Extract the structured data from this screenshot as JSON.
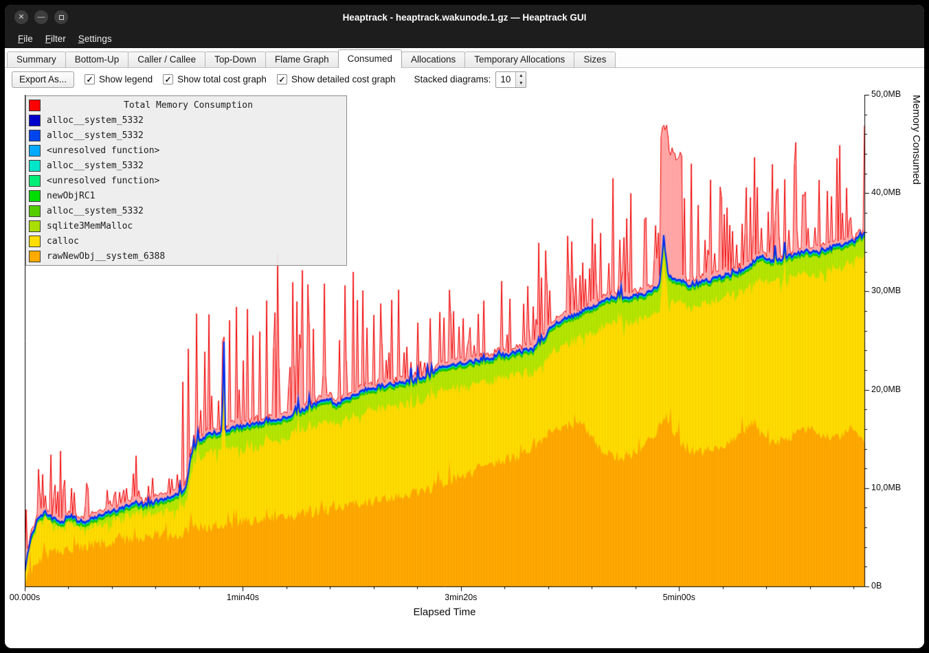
{
  "window": {
    "title": "Heaptrack - heaptrack.wakunode.1.gz — Heaptrack GUI"
  },
  "menubar": {
    "items": [
      "File",
      "Filter",
      "Settings"
    ]
  },
  "tabs": {
    "items": [
      "Summary",
      "Bottom-Up",
      "Caller / Callee",
      "Top-Down",
      "Flame Graph",
      "Consumed",
      "Allocations",
      "Temporary Allocations",
      "Sizes"
    ],
    "active": "Consumed"
  },
  "toolbar": {
    "export_label": "Export As...",
    "checkboxes": [
      {
        "label": "Show legend",
        "checked": true
      },
      {
        "label": "Show total cost graph",
        "checked": true
      },
      {
        "label": "Show detailed cost graph",
        "checked": true
      }
    ],
    "stacked_label": "Stacked diagrams:",
    "stacked_value": "10"
  },
  "legend": {
    "title": "Total Memory Consumption",
    "title_color": "#ff0000",
    "items": [
      {
        "label": "alloc__system_5332",
        "color": "#0000cc"
      },
      {
        "label": "alloc__system_5332",
        "color": "#0044ee"
      },
      {
        "label": "<unresolved function>",
        "color": "#00aaff"
      },
      {
        "label": "alloc__system_5332",
        "color": "#00e6c8"
      },
      {
        "label": "<unresolved function>",
        "color": "#00ee77"
      },
      {
        "label": "newObjRC1",
        "color": "#00dd00"
      },
      {
        "label": "alloc__system_5332",
        "color": "#55cc00"
      },
      {
        "label": "sqlite3MemMalloc",
        "color": "#aadd00"
      },
      {
        "label": "calloc",
        "color": "#ffdd00"
      },
      {
        "label": "rawNewObj__system_6388",
        "color": "#ffaa00"
      }
    ]
  },
  "chart_data": {
    "type": "area",
    "title": "Total Memory Consumption",
    "xlabel": "Elapsed Time",
    "ylabel": "Memory Consumed",
    "x_axis": {
      "max_s": 385,
      "minor_step_s": 20,
      "ticks": [
        {
          "s": 0,
          "label": "00.000s"
        },
        {
          "s": 100,
          "label": "1min40s"
        },
        {
          "s": 200,
          "label": "3min20s"
        },
        {
          "s": 300,
          "label": "5min00s"
        }
      ]
    },
    "y_axis": {
      "max_mb": 50,
      "minor_step_mb": 2,
      "ticks": [
        {
          "v": 0,
          "label": "0B"
        },
        {
          "v": 10,
          "label": "10,0MB"
        },
        {
          "v": 20,
          "label": "20,0MB"
        },
        {
          "v": 30,
          "label": "30,0MB"
        },
        {
          "v": 40,
          "label": "40,0MB"
        },
        {
          "v": 50,
          "label": "50,0MB"
        }
      ]
    },
    "colors": {
      "total_fill": "#ff3030",
      "total_line": "#ee0000",
      "stack_top_line": "#0030f0",
      "blue_fill": "#0038ff",
      "cyan_band": "#00dcc8",
      "green_band": "#16c800",
      "light_green": "#b4e600",
      "yellow": "#ffdc00",
      "orange": "#ffa800"
    },
    "series": {
      "note": "keypoints are [elapsed_seconds, megabytes] read off the plot; detailed spikes are reconstructed around these trends",
      "stack_top_mb": [
        [
          0,
          1.6
        ],
        [
          3,
          5.2
        ],
        [
          6,
          6.8
        ],
        [
          9,
          7.6
        ],
        [
          13,
          6.9
        ],
        [
          17,
          6.5
        ],
        [
          20,
          7.3
        ],
        [
          24,
          6.8
        ],
        [
          28,
          6.6
        ],
        [
          32,
          7.0
        ],
        [
          36,
          7.3
        ],
        [
          40,
          7.6
        ],
        [
          45,
          8.0
        ],
        [
          50,
          8.6
        ],
        [
          55,
          8.3
        ],
        [
          60,
          8.7
        ],
        [
          65,
          8.9
        ],
        [
          70,
          9.3
        ],
        [
          74,
          9.9
        ],
        [
          76,
          13.2
        ],
        [
          80,
          14.8
        ],
        [
          84,
          15.4
        ],
        [
          88,
          15.7
        ],
        [
          90.6,
          15.8
        ],
        [
          91.2,
          28.4
        ],
        [
          91.8,
          15.9
        ],
        [
          95,
          16.1
        ],
        [
          100,
          16.3
        ],
        [
          106,
          16.6
        ],
        [
          112,
          16.9
        ],
        [
          118,
          17.1
        ],
        [
          124,
          17.6
        ],
        [
          130,
          18.2
        ],
        [
          135,
          18.8
        ],
        [
          139,
          19.1
        ],
        [
          143,
          18.6
        ],
        [
          148,
          19.2
        ],
        [
          153,
          19.7
        ],
        [
          158,
          20.1
        ],
        [
          163,
          20.4
        ],
        [
          169,
          20.6
        ],
        [
          175,
          20.8
        ],
        [
          181,
          21.0
        ],
        [
          187,
          21.5
        ],
        [
          191,
          22.3
        ],
        [
          196,
          22.5
        ],
        [
          202,
          22.7
        ],
        [
          208,
          23.0
        ],
        [
          214,
          23.3
        ],
        [
          221,
          23.6
        ],
        [
          227,
          23.9
        ],
        [
          233,
          24.1
        ],
        [
          238,
          25.2
        ],
        [
          241,
          26.5
        ],
        [
          246,
          27.1
        ],
        [
          251,
          27.5
        ],
        [
          257,
          28.1
        ],
        [
          263,
          28.8
        ],
        [
          268,
          29.3
        ],
        [
          274,
          29.4
        ],
        [
          280,
          29.5
        ],
        [
          286,
          29.9
        ],
        [
          291,
          30.6
        ],
        [
          293,
          35.6
        ],
        [
          295,
          31.6
        ],
        [
          299,
          31.3
        ],
        [
          304,
          30.7
        ],
        [
          309,
          30.9
        ],
        [
          315,
          31.2
        ],
        [
          321,
          31.6
        ],
        [
          327,
          32.0
        ],
        [
          333,
          32.8
        ],
        [
          337,
          33.7
        ],
        [
          341,
          33.2
        ],
        [
          346,
          33.3
        ],
        [
          352,
          33.7
        ],
        [
          358,
          34.1
        ],
        [
          364,
          34.0
        ],
        [
          370,
          34.5
        ],
        [
          376,
          34.9
        ],
        [
          381,
          35.2
        ],
        [
          385,
          35.9
        ]
      ],
      "raw_new_obj_mb": [
        [
          0,
          0.2
        ],
        [
          5,
          2.6
        ],
        [
          10,
          3.2
        ],
        [
          20,
          3.8
        ],
        [
          30,
          4.2
        ],
        [
          40,
          4.5
        ],
        [
          50,
          4.9
        ],
        [
          60,
          5.3
        ],
        [
          68,
          5.0
        ],
        [
          76,
          5.9
        ],
        [
          85,
          6.1
        ],
        [
          95,
          6.3
        ],
        [
          105,
          6.7
        ],
        [
          115,
          7.0
        ],
        [
          125,
          7.3
        ],
        [
          135,
          7.7
        ],
        [
          145,
          8.0
        ],
        [
          155,
          8.4
        ],
        [
          165,
          8.8
        ],
        [
          175,
          9.2
        ],
        [
          185,
          9.8
        ],
        [
          193,
          10.6
        ],
        [
          200,
          11.2
        ],
        [
          207,
          11.9
        ],
        [
          214,
          12.5
        ],
        [
          221,
          12.9
        ],
        [
          228,
          13.4
        ],
        [
          235,
          14.6
        ],
        [
          242,
          15.8
        ],
        [
          249,
          16.4
        ],
        [
          255,
          16.6
        ],
        [
          260,
          15.2
        ],
        [
          265,
          13.4
        ],
        [
          271,
          13.0
        ],
        [
          277,
          13.4
        ],
        [
          283,
          14.0
        ],
        [
          289,
          15.4
        ],
        [
          294,
          17.3
        ],
        [
          298,
          15.6
        ],
        [
          303,
          14.2
        ],
        [
          308,
          13.6
        ],
        [
          314,
          13.9
        ],
        [
          320,
          14.2
        ],
        [
          326,
          15.0
        ],
        [
          331,
          16.2
        ],
        [
          335,
          16.6
        ],
        [
          339,
          15.0
        ],
        [
          344,
          14.6
        ],
        [
          350,
          15.1
        ],
        [
          356,
          15.8
        ],
        [
          361,
          16.2
        ],
        [
          366,
          15.2
        ],
        [
          371,
          14.9
        ],
        [
          376,
          15.6
        ],
        [
          381,
          16.3
        ],
        [
          385,
          14.8
        ]
      ],
      "calloc_gap_mb": [
        [
          0,
          0.5
        ],
        [
          30,
          0.9
        ],
        [
          60,
          1.1
        ],
        [
          76,
          1.8
        ],
        [
          100,
          1.9
        ],
        [
          140,
          2.1
        ],
        [
          180,
          2.2
        ],
        [
          220,
          2.3
        ],
        [
          245,
          2.6
        ],
        [
          280,
          2.5
        ],
        [
          320,
          2.3
        ],
        [
          350,
          2.2
        ],
        [
          385,
          2.1
        ]
      ],
      "total_spike_envelope_mb": [
        [
          0,
          5
        ],
        [
          12,
          7
        ],
        [
          20,
          9
        ],
        [
          28,
          5
        ],
        [
          40,
          4
        ],
        [
          55,
          4
        ],
        [
          70,
          6
        ],
        [
          76,
          22
        ],
        [
          82,
          14
        ],
        [
          90,
          10
        ],
        [
          100,
          16
        ],
        [
          108,
          18
        ],
        [
          116,
          18
        ],
        [
          124,
          14
        ],
        [
          132,
          15
        ],
        [
          142,
          12
        ],
        [
          152,
          12
        ],
        [
          162,
          11
        ],
        [
          172,
          10
        ],
        [
          182,
          9
        ],
        [
          192,
          8
        ],
        [
          202,
          8
        ],
        [
          212,
          8
        ],
        [
          222,
          9
        ],
        [
          232,
          9
        ],
        [
          240,
          10
        ],
        [
          250,
          9
        ],
        [
          260,
          11
        ],
        [
          268,
          14
        ],
        [
          276,
          13
        ],
        [
          284,
          12
        ],
        [
          292,
          13
        ],
        [
          300,
          14
        ],
        [
          308,
          12
        ],
        [
          316,
          11
        ],
        [
          324,
          12
        ],
        [
          332,
          11
        ],
        [
          340,
          11
        ],
        [
          348,
          12
        ],
        [
          356,
          11
        ],
        [
          364,
          12
        ],
        [
          372,
          11
        ],
        [
          380,
          12
        ],
        [
          385,
          11
        ]
      ]
    }
  }
}
